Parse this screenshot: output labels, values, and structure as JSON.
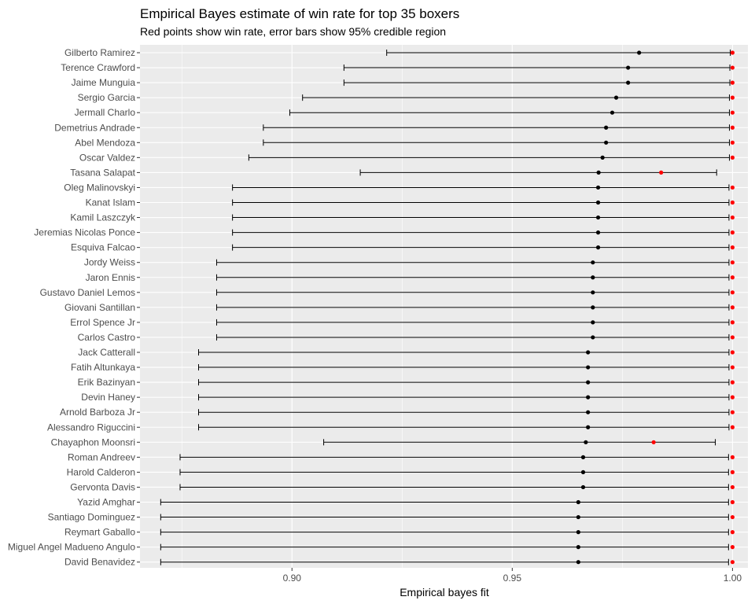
{
  "chart_data": {
    "type": "scatter",
    "title": "Empirical Bayes estimate of win rate for top 35 boxers",
    "subtitle": "Red points show win rate, error bars show 95% credible region",
    "xlabel": "Empirical bayes fit",
    "ylabel": "",
    "xlim": [
      0.8655,
      1.0035
    ],
    "xticks": [
      0.9,
      0.95,
      1.0
    ],
    "xtick_labels": [
      "0.90",
      "0.95",
      "1.00"
    ],
    "grid": true,
    "colors": {
      "panel": "#ebebeb",
      "grid": "#ffffff",
      "estimate": "#000000",
      "win_rate": "#ff0000"
    },
    "boxers": [
      {
        "name": "Gilberto Ramirez",
        "fit": 0.9788,
        "lower": 0.9215,
        "upper": 0.9995,
        "win_rate": 1.0
      },
      {
        "name": "Terence Crawford",
        "fit": 0.9763,
        "lower": 0.9118,
        "upper": 0.9994,
        "win_rate": 1.0
      },
      {
        "name": "Jaime Munguia",
        "fit": 0.9763,
        "lower": 0.9118,
        "upper": 0.9994,
        "win_rate": 1.0
      },
      {
        "name": "Sergio Garcia",
        "fit": 0.9736,
        "lower": 0.9024,
        "upper": 0.9993,
        "win_rate": 1.0
      },
      {
        "name": "Jermall Charlo",
        "fit": 0.9727,
        "lower": 0.8995,
        "upper": 0.9993,
        "win_rate": 1.0
      },
      {
        "name": "Demetrius Andrade",
        "fit": 0.9713,
        "lower": 0.8935,
        "upper": 0.9993,
        "win_rate": 1.0
      },
      {
        "name": "Abel Mendoza",
        "fit": 0.9713,
        "lower": 0.8935,
        "upper": 0.9993,
        "win_rate": 1.0
      },
      {
        "name": "Oscar Valdez",
        "fit": 0.9705,
        "lower": 0.8902,
        "upper": 0.9993,
        "win_rate": 1.0
      },
      {
        "name": "Tasana Salapat",
        "fit": 0.9696,
        "lower": 0.9155,
        "upper": 0.9964,
        "win_rate": 0.9838
      },
      {
        "name": "Oleg Malinovskyi",
        "fit": 0.9695,
        "lower": 0.8865,
        "upper": 0.9992,
        "win_rate": 1.0
      },
      {
        "name": "Kanat Islam",
        "fit": 0.9695,
        "lower": 0.8865,
        "upper": 0.9992,
        "win_rate": 1.0
      },
      {
        "name": "Kamil Laszczyk",
        "fit": 0.9695,
        "lower": 0.8865,
        "upper": 0.9992,
        "win_rate": 1.0
      },
      {
        "name": "Jeremias Nicolas Ponce",
        "fit": 0.9695,
        "lower": 0.8865,
        "upper": 0.9992,
        "win_rate": 1.0
      },
      {
        "name": "Esquiva Falcao",
        "fit": 0.9695,
        "lower": 0.8865,
        "upper": 0.9992,
        "win_rate": 1.0
      },
      {
        "name": "Jordy Weiss",
        "fit": 0.9683,
        "lower": 0.8829,
        "upper": 0.9992,
        "win_rate": 1.0
      },
      {
        "name": "Jaron Ennis",
        "fit": 0.9683,
        "lower": 0.8829,
        "upper": 0.9992,
        "win_rate": 1.0
      },
      {
        "name": "Gustavo Daniel Lemos",
        "fit": 0.9683,
        "lower": 0.8829,
        "upper": 0.9992,
        "win_rate": 1.0
      },
      {
        "name": "Giovani Santillan",
        "fit": 0.9683,
        "lower": 0.8829,
        "upper": 0.9992,
        "win_rate": 1.0
      },
      {
        "name": "Errol Spence Jr",
        "fit": 0.9683,
        "lower": 0.8829,
        "upper": 0.9992,
        "win_rate": 1.0
      },
      {
        "name": "Carlos Castro",
        "fit": 0.9683,
        "lower": 0.8829,
        "upper": 0.9992,
        "win_rate": 1.0
      },
      {
        "name": "Jack Catterall",
        "fit": 0.9672,
        "lower": 0.8788,
        "upper": 0.9992,
        "win_rate": 1.0
      },
      {
        "name": "Fatih Altunkaya",
        "fit": 0.9672,
        "lower": 0.8788,
        "upper": 0.9992,
        "win_rate": 1.0
      },
      {
        "name": "Erik Bazinyan",
        "fit": 0.9672,
        "lower": 0.8788,
        "upper": 0.9992,
        "win_rate": 1.0
      },
      {
        "name": "Devin Haney",
        "fit": 0.9672,
        "lower": 0.8788,
        "upper": 0.9992,
        "win_rate": 1.0
      },
      {
        "name": "Arnold Barboza Jr",
        "fit": 0.9672,
        "lower": 0.8788,
        "upper": 0.9992,
        "win_rate": 1.0
      },
      {
        "name": "Alessandro Riguccini",
        "fit": 0.9672,
        "lower": 0.8788,
        "upper": 0.9992,
        "win_rate": 1.0
      },
      {
        "name": "Chayaphon Moonsri",
        "fit": 0.9667,
        "lower": 0.9072,
        "upper": 0.9961,
        "win_rate": 0.9821
      },
      {
        "name": "Roman Andreev",
        "fit": 0.9661,
        "lower": 0.8746,
        "upper": 0.9991,
        "win_rate": 1.0
      },
      {
        "name": "Harold Calderon",
        "fit": 0.9661,
        "lower": 0.8746,
        "upper": 0.9991,
        "win_rate": 1.0
      },
      {
        "name": "Gervonta Davis",
        "fit": 0.9661,
        "lower": 0.8746,
        "upper": 0.9991,
        "win_rate": 1.0
      },
      {
        "name": "Yazid Amghar",
        "fit": 0.965,
        "lower": 0.8702,
        "upper": 0.9991,
        "win_rate": 1.0
      },
      {
        "name": "Santiago Dominguez",
        "fit": 0.965,
        "lower": 0.8702,
        "upper": 0.9991,
        "win_rate": 1.0
      },
      {
        "name": "Reymart Gaballo",
        "fit": 0.965,
        "lower": 0.8702,
        "upper": 0.9991,
        "win_rate": 1.0
      },
      {
        "name": "Miguel Angel Madueno Angulo",
        "fit": 0.965,
        "lower": 0.8702,
        "upper": 0.9991,
        "win_rate": 1.0
      },
      {
        "name": "David Benavidez",
        "fit": 0.965,
        "lower": 0.8702,
        "upper": 0.9991,
        "win_rate": 1.0
      }
    ]
  }
}
